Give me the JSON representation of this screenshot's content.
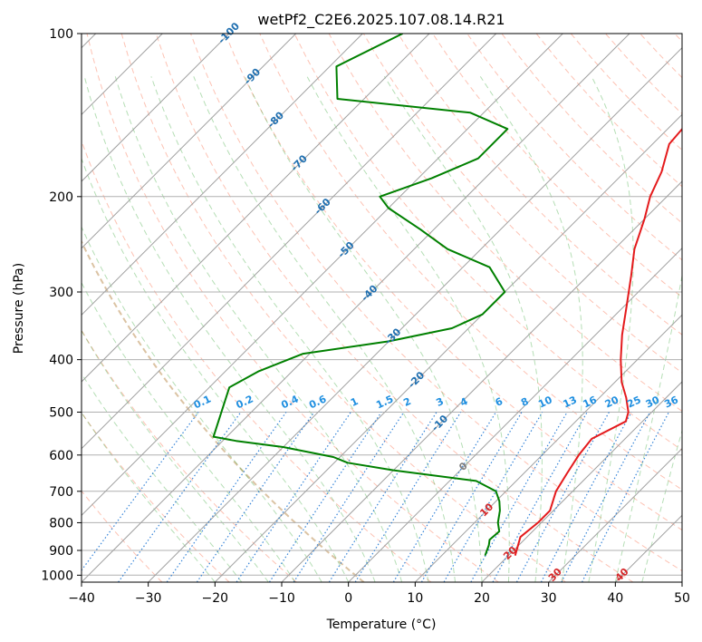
{
  "chart_data": {
    "type": "line",
    "title": "wetPf2_C2E6.2025.107.08.14.R21",
    "xlabel": "Temperature (°C)",
    "ylabel": "Pressure (hPa)",
    "xlim": [
      -40,
      50
    ],
    "ylim": [
      1030,
      100
    ],
    "x_scale": "skew-T",
    "y_scale": "log",
    "x_ticks": [
      -40,
      -30,
      -20,
      -10,
      0,
      10,
      20,
      30,
      40,
      50
    ],
    "y_ticks": [
      100,
      200,
      300,
      400,
      500,
      600,
      700,
      800,
      900,
      1000
    ],
    "grid": true,
    "series": [
      {
        "role": "temperature",
        "color": "#e41a1c",
        "points": [
          [
            920,
            21.0
          ],
          [
            850,
            19.0
          ],
          [
            800,
            19.5
          ],
          [
            760,
            19.5
          ],
          [
            700,
            17.5
          ],
          [
            650,
            16.5
          ],
          [
            600,
            15.5
          ],
          [
            560,
            15.0
          ],
          [
            520,
            17.5
          ],
          [
            500,
            16.5
          ],
          [
            470,
            14.0
          ],
          [
            440,
            11.0
          ],
          [
            400,
            7.5
          ],
          [
            360,
            4.0
          ],
          [
            320,
            0.5
          ],
          [
            280,
            -3.5
          ],
          [
            250,
            -7.0
          ],
          [
            220,
            -10.0
          ],
          [
            200,
            -12.5
          ],
          [
            180,
            -14.5
          ],
          [
            160,
            -17.5
          ],
          [
            145,
            -18.0
          ],
          [
            135,
            -16.0
          ],
          [
            127,
            -11.0
          ],
          [
            120,
            -5.0
          ],
          [
            113,
            -0.5
          ],
          [
            108,
            -2.5
          ],
          [
            100,
            -3.5
          ]
        ]
      },
      {
        "role": "dewpoint",
        "color": "#008000",
        "points": [
          [
            920,
            16.5
          ],
          [
            880,
            15.5
          ],
          [
            860,
            14.8
          ],
          [
            830,
            15.0
          ],
          [
            800,
            13.5
          ],
          [
            760,
            12.0
          ],
          [
            730,
            10.5
          ],
          [
            700,
            8.5
          ],
          [
            670,
            4.0
          ],
          [
            640,
            -10.0
          ],
          [
            620,
            -18.0
          ],
          [
            605,
            -21.0
          ],
          [
            580,
            -30.0
          ],
          [
            565,
            -38.0
          ],
          [
            555,
            -42.0
          ],
          [
            450,
            -47.0
          ],
          [
            420,
            -45.0
          ],
          [
            390,
            -41.0
          ],
          [
            370,
            -30.0
          ],
          [
            350,
            -22.5
          ],
          [
            330,
            -20.0
          ],
          [
            300,
            -20.0
          ],
          [
            270,
            -26.0
          ],
          [
            250,
            -35.0
          ],
          [
            230,
            -42.0
          ],
          [
            210,
            -50.0
          ],
          [
            200,
            -53.0
          ],
          [
            185,
            -48.0
          ],
          [
            170,
            -44.0
          ],
          [
            150,
            -44.0
          ],
          [
            140,
            -52.0
          ],
          [
            132,
            -74.0
          ],
          [
            115,
            -79.0
          ],
          [
            100,
            -74.0
          ]
        ]
      }
    ],
    "mixing_ratio_labels": [
      "0.1",
      "0.2",
      "0.4",
      "0.6",
      "1",
      "1.5",
      "2",
      "3",
      "4",
      "6",
      "8",
      "10",
      "13",
      "16",
      "20",
      "25",
      "30",
      "36"
    ],
    "isotherm_labels": [
      "-100",
      "-90",
      "-80",
      "-70",
      "-60",
      "-50",
      "-40",
      "-30",
      "-20",
      "-10",
      "0",
      "10",
      "20",
      "30",
      "40"
    ]
  }
}
